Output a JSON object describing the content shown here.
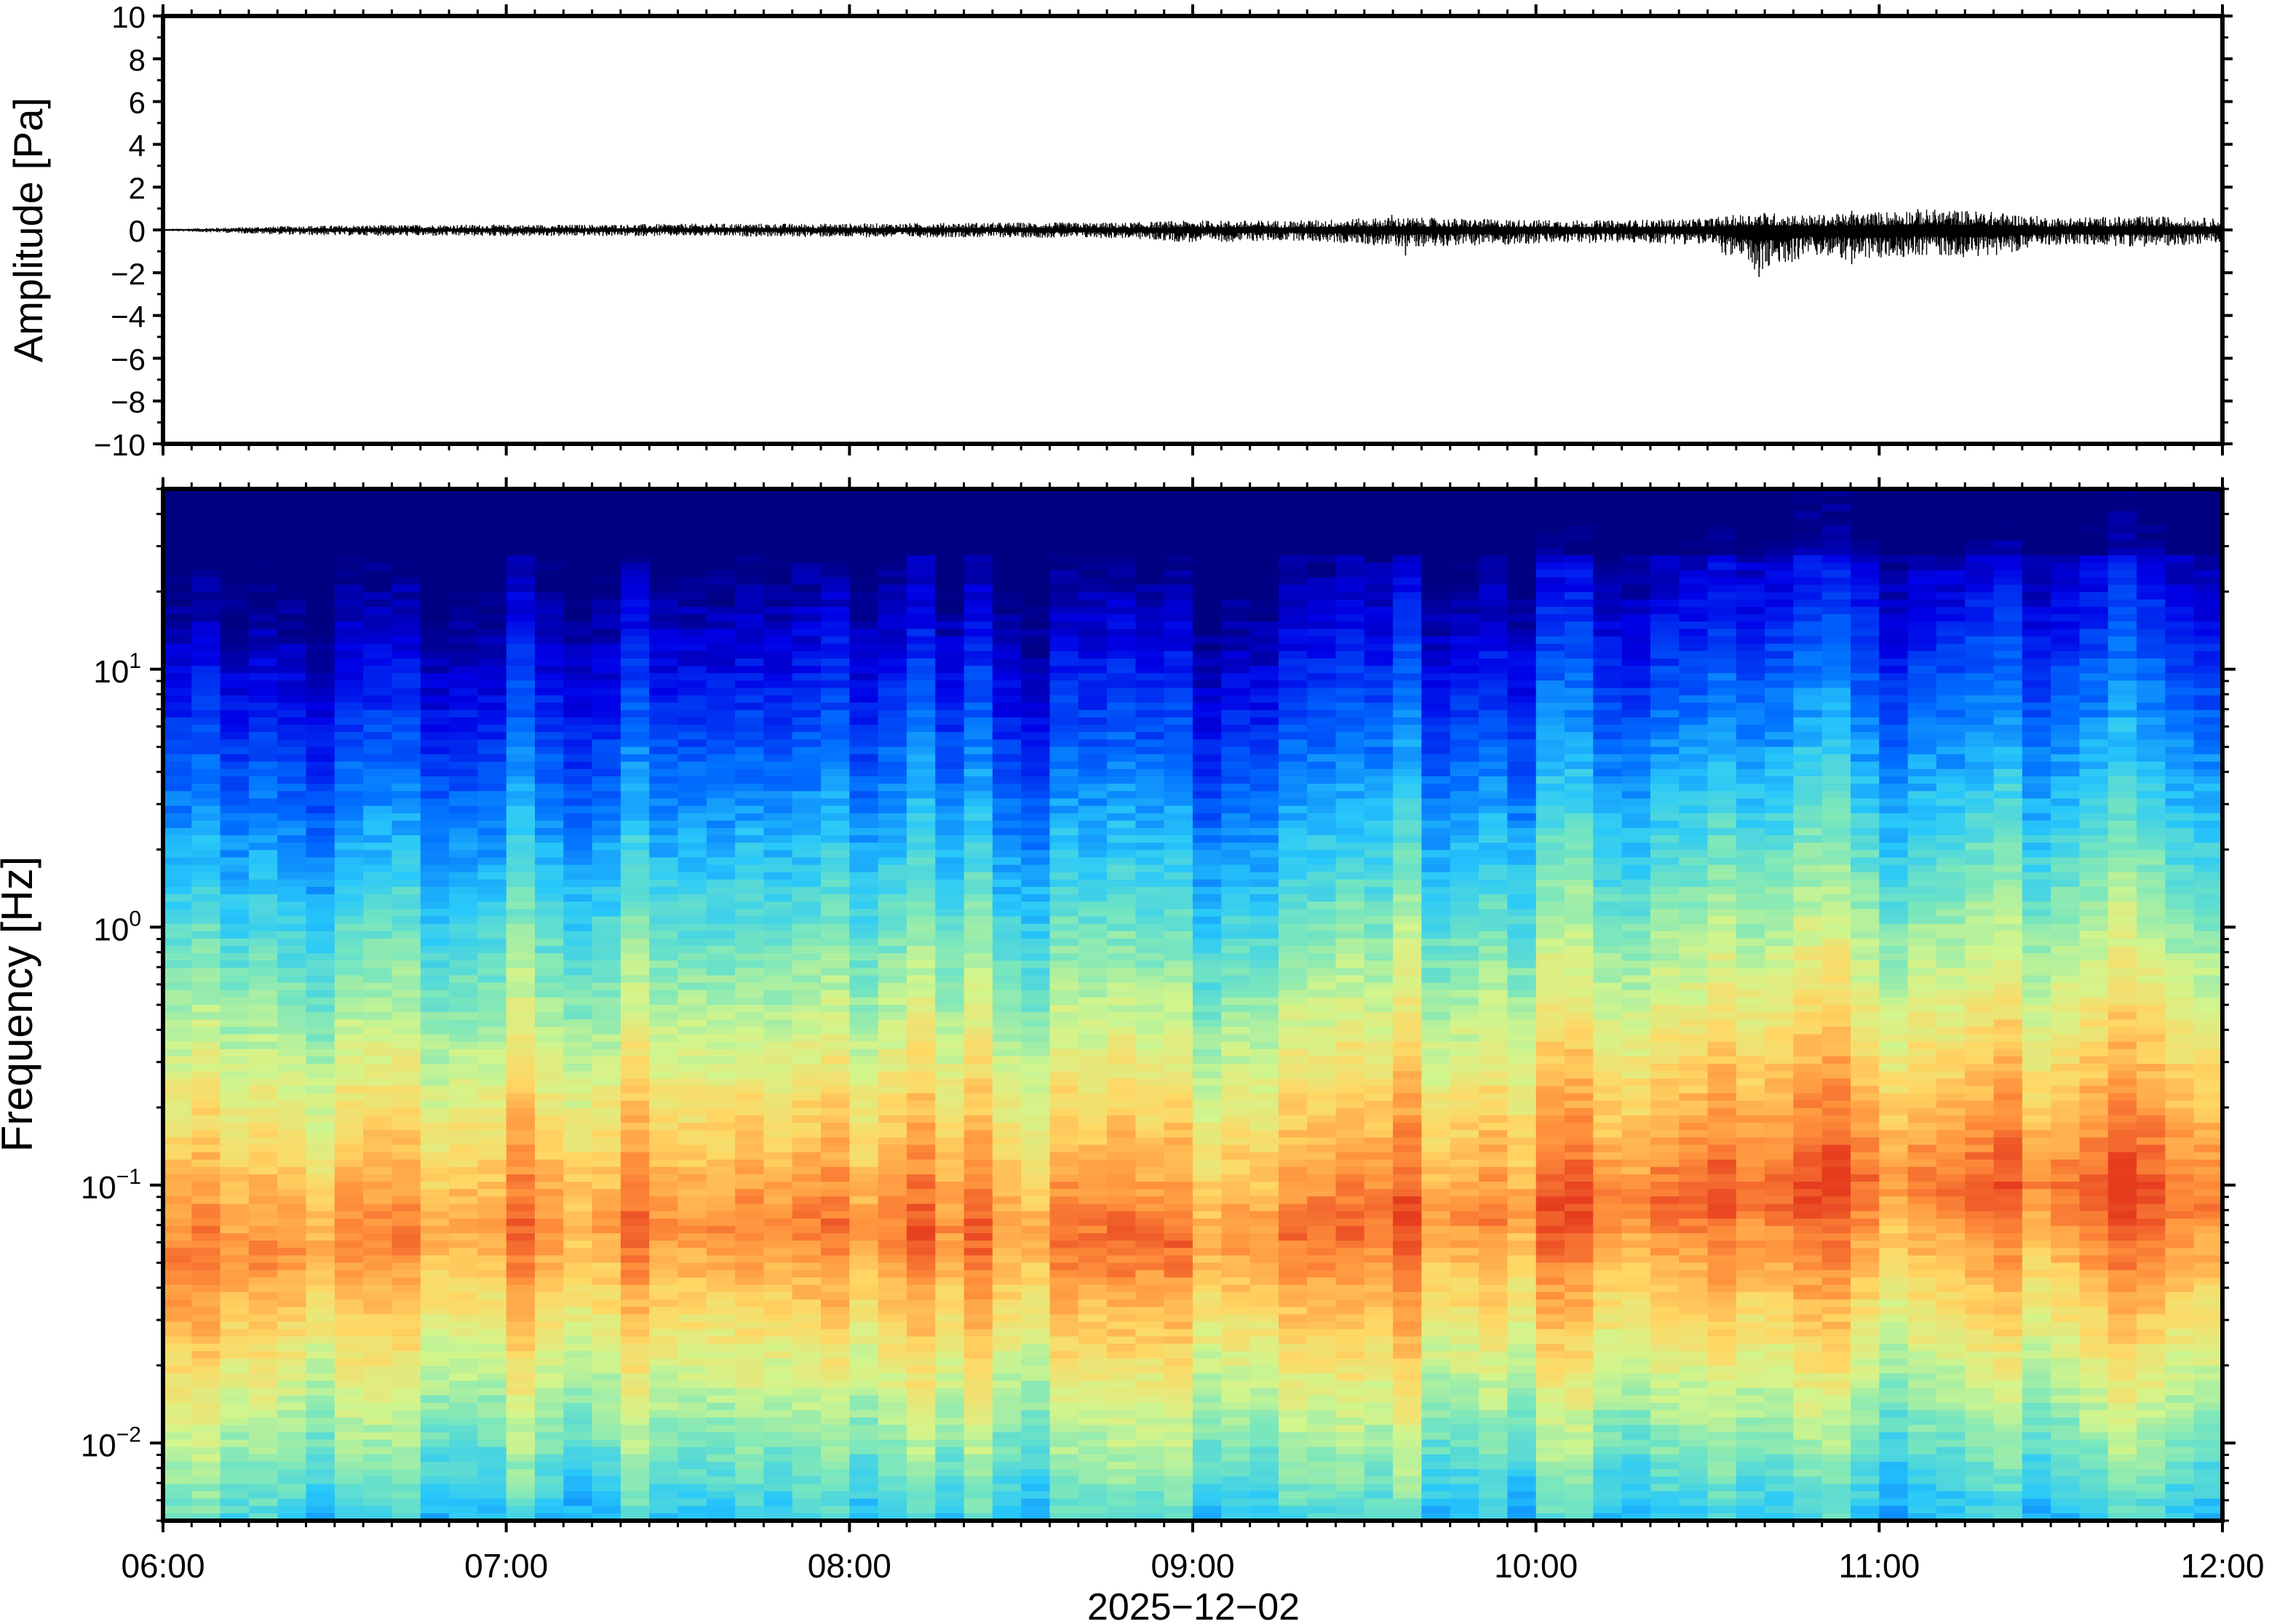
{
  "chart_data": [
    {
      "type": "line",
      "ylabel": "Amplitude [Pa]",
      "ylim": [
        -10,
        10
      ],
      "yticks": [
        {
          "value": 10,
          "label": "10"
        },
        {
          "value": 8,
          "label": "8"
        },
        {
          "value": 6,
          "label": "6"
        },
        {
          "value": 4,
          "label": "4"
        },
        {
          "value": 2,
          "label": "2"
        },
        {
          "value": 0,
          "label": "0"
        },
        {
          "value": -2,
          "label": "−2"
        },
        {
          "value": -4,
          "label": "−4"
        },
        {
          "value": -6,
          "label": "−6"
        },
        {
          "value": -8,
          "label": "−8"
        },
        {
          "value": -10,
          "label": "−10"
        }
      ],
      "x_range_hours": [
        6,
        12
      ],
      "envelope": {
        "x_hours": [
          6.0,
          6.4,
          6.8,
          7.2,
          7.6,
          8.0,
          8.4,
          8.8,
          9.0,
          9.3,
          9.6,
          9.9,
          10.2,
          10.5,
          10.65,
          10.8,
          10.95,
          11.1,
          11.3,
          11.5,
          11.8,
          12.0
        ],
        "upper": [
          0.05,
          0.2,
          0.25,
          0.25,
          0.3,
          0.3,
          0.35,
          0.35,
          0.45,
          0.45,
          0.6,
          0.5,
          0.45,
          0.55,
          0.85,
          0.7,
          0.8,
          1.0,
          0.9,
          0.6,
          0.65,
          0.55
        ],
        "lower": [
          -0.05,
          -0.25,
          -0.3,
          -0.3,
          -0.3,
          -0.35,
          -0.35,
          -0.4,
          -0.6,
          -0.5,
          -0.8,
          -0.7,
          -0.6,
          -0.7,
          -2.1,
          -1.2,
          -1.5,
          -1.2,
          -1.3,
          -0.7,
          -0.8,
          -0.6
        ]
      },
      "spikes": [
        {
          "x_hours": 10.65,
          "value": -2.2
        },
        {
          "x_hours": 10.92,
          "value": -1.6
        },
        {
          "x_hours": 10.92,
          "value": 0.9
        },
        {
          "x_hours": 9.58,
          "value": 0.7
        },
        {
          "x_hours": 9.62,
          "value": -1.2
        }
      ]
    },
    {
      "type": "heatmap",
      "ylabel": "Frequency [Hz]",
      "xlabel": "2025−12−02",
      "yscale": "log",
      "ylim": [
        0.005,
        50
      ],
      "yticks": [
        {
          "value": 10,
          "base": "10",
          "exp": "1"
        },
        {
          "value": 1,
          "base": "10",
          "exp": "0"
        },
        {
          "value": 0.1,
          "base": "10",
          "exp": "−1"
        },
        {
          "value": 0.01,
          "base": "10",
          "exp": "−2"
        }
      ],
      "xticks": [
        {
          "value": 6,
          "label": "06:00"
        },
        {
          "value": 7,
          "label": "07:00"
        },
        {
          "value": 8,
          "label": "08:00"
        },
        {
          "value": 9,
          "label": "09:00"
        },
        {
          "value": 10,
          "label": "10:00"
        },
        {
          "value": 11,
          "label": "11:00"
        },
        {
          "value": 12,
          "label": "12:00"
        }
      ],
      "colormap": "jet",
      "energy_peak": {
        "freq_hz": [
          0.05,
          0.07,
          0.07,
          0.06,
          0.08,
          0.1,
          0.09
        ],
        "at_hours": [
          6,
          7,
          8,
          9,
          10,
          11,
          12
        ]
      },
      "time_bins": 72
    }
  ],
  "colors": {
    "trace": "#000000",
    "frame": "#000000",
    "background": "#ffffff"
  }
}
